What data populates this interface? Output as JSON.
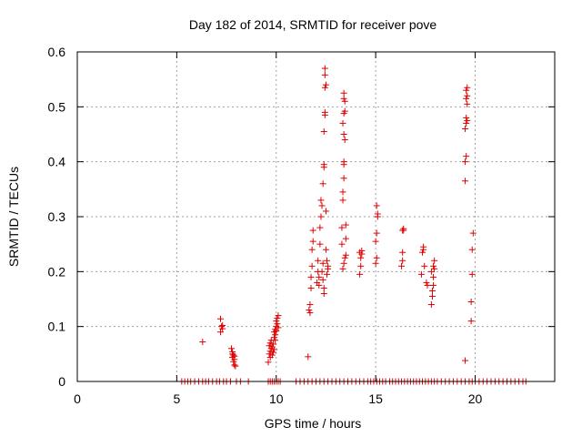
{
  "chart_data": {
    "type": "scatter",
    "title": "Day 182 of 2014, SRMTID for receiver pove",
    "xlabel": "GPS time / hours",
    "ylabel": "SRMTID / TECUs",
    "xlim": [
      0,
      24
    ],
    "ylim": [
      0,
      0.6
    ],
    "xticks": [
      0,
      5,
      10,
      15,
      20
    ],
    "yticks": [
      0,
      0.1,
      0.2,
      0.3,
      0.4,
      0.5,
      0.6
    ],
    "xtick_labels": [
      "0",
      "5",
      "10",
      "15",
      "20"
    ],
    "ytick_labels": [
      "0",
      "0.1",
      "0.2",
      "0.3",
      "0.4",
      "0.5",
      "0.6"
    ],
    "grid": true,
    "marker": "+",
    "color": "#e00000",
    "series": [
      {
        "name": "SRMTID",
        "points": [
          [
            6.3,
            0.072
          ],
          [
            7.2,
            0.114
          ],
          [
            7.25,
            0.1
          ],
          [
            7.3,
            0.096
          ],
          [
            7.2,
            0.09
          ],
          [
            7.3,
            0.102
          ],
          [
            7.75,
            0.06
          ],
          [
            7.8,
            0.054
          ],
          [
            7.85,
            0.048
          ],
          [
            7.8,
            0.044
          ],
          [
            7.9,
            0.04
          ],
          [
            7.85,
            0.036
          ],
          [
            7.9,
            0.03
          ],
          [
            7.95,
            0.028
          ],
          [
            7.8,
            0.05
          ],
          [
            7.9,
            0.046
          ],
          [
            9.6,
            0.035
          ],
          [
            9.65,
            0.05
          ],
          [
            9.7,
            0.055
          ],
          [
            9.75,
            0.06
          ],
          [
            9.65,
            0.065
          ],
          [
            9.7,
            0.07
          ],
          [
            9.75,
            0.075
          ],
          [
            9.8,
            0.048
          ],
          [
            9.85,
            0.053
          ],
          [
            9.9,
            0.058
          ],
          [
            9.7,
            0.044
          ],
          [
            9.8,
            0.063
          ],
          [
            9.85,
            0.068
          ],
          [
            9.9,
            0.09
          ],
          [
            9.95,
            0.095
          ],
          [
            10.0,
            0.1
          ],
          [
            10.05,
            0.105
          ],
          [
            9.95,
            0.085
          ],
          [
            10.0,
            0.11
          ],
          [
            10.05,
            0.115
          ],
          [
            10.1,
            0.12
          ],
          [
            9.9,
            0.08
          ],
          [
            10.1,
            0.098
          ],
          [
            10.0,
            0.092
          ],
          [
            9.95,
            0.075
          ],
          [
            11.6,
            0.045
          ],
          [
            11.65,
            0.13
          ],
          [
            11.7,
            0.125
          ],
          [
            11.7,
            0.14
          ],
          [
            11.75,
            0.17
          ],
          [
            11.75,
            0.19
          ],
          [
            11.8,
            0.21
          ],
          [
            11.8,
            0.24
          ],
          [
            11.85,
            0.255
          ],
          [
            11.85,
            0.275
          ],
          [
            12.05,
            0.18
          ],
          [
            12.1,
            0.2
          ],
          [
            12.1,
            0.22
          ],
          [
            12.15,
            0.19
          ],
          [
            12.15,
            0.175
          ],
          [
            12.2,
            0.25
          ],
          [
            12.2,
            0.28
          ],
          [
            12.25,
            0.3
          ],
          [
            12.25,
            0.33
          ],
          [
            12.3,
            0.32
          ],
          [
            12.3,
            0.2
          ],
          [
            12.35,
            0.215
          ],
          [
            12.35,
            0.185
          ],
          [
            12.4,
            0.17
          ],
          [
            12.4,
            0.16
          ],
          [
            12.35,
            0.36
          ],
          [
            12.4,
            0.39
          ],
          [
            12.4,
            0.395
          ],
          [
            12.4,
            0.455
          ],
          [
            12.45,
            0.485
          ],
          [
            12.45,
            0.49
          ],
          [
            12.45,
            0.535
          ],
          [
            12.5,
            0.54
          ],
          [
            12.45,
            0.558
          ],
          [
            12.45,
            0.57
          ],
          [
            12.5,
            0.31
          ],
          [
            12.5,
            0.24
          ],
          [
            12.55,
            0.22
          ],
          [
            12.55,
            0.195
          ],
          [
            12.6,
            0.21
          ],
          [
            12.6,
            0.205
          ],
          [
            13.3,
            0.25
          ],
          [
            13.3,
            0.28
          ],
          [
            13.35,
            0.33
          ],
          [
            13.35,
            0.345
          ],
          [
            13.4,
            0.37
          ],
          [
            13.4,
            0.395
          ],
          [
            13.4,
            0.4
          ],
          [
            13.45,
            0.44
          ],
          [
            13.4,
            0.45
          ],
          [
            13.35,
            0.47
          ],
          [
            13.4,
            0.488
          ],
          [
            13.45,
            0.492
          ],
          [
            13.45,
            0.51
          ],
          [
            13.4,
            0.515
          ],
          [
            13.4,
            0.525
          ],
          [
            13.35,
            0.205
          ],
          [
            13.4,
            0.215
          ],
          [
            13.45,
            0.225
          ],
          [
            13.5,
            0.23
          ],
          [
            13.5,
            0.26
          ],
          [
            13.5,
            0.285
          ],
          [
            14.2,
            0.195
          ],
          [
            14.25,
            0.21
          ],
          [
            14.25,
            0.225
          ],
          [
            14.2,
            0.235
          ],
          [
            14.3,
            0.238
          ],
          [
            14.3,
            0.232
          ],
          [
            15.0,
            0.215
          ],
          [
            15.05,
            0.225
          ],
          [
            15.0,
            0.255
          ],
          [
            15.05,
            0.27
          ],
          [
            15.1,
            0.3
          ],
          [
            15.1,
            0.305
          ],
          [
            15.05,
            0.32
          ],
          [
            16.3,
            0.21
          ],
          [
            16.35,
            0.22
          ],
          [
            16.35,
            0.235
          ],
          [
            16.35,
            0.275
          ],
          [
            16.4,
            0.275
          ],
          [
            16.4,
            0.278
          ],
          [
            17.3,
            0.195
          ],
          [
            17.35,
            0.235
          ],
          [
            17.4,
            0.24
          ],
          [
            17.4,
            0.245
          ],
          [
            17.45,
            0.21
          ],
          [
            17.55,
            0.18
          ],
          [
            17.6,
            0.175
          ],
          [
            17.8,
            0.14
          ],
          [
            17.85,
            0.155
          ],
          [
            17.85,
            0.165
          ],
          [
            17.9,
            0.175
          ],
          [
            17.9,
            0.19
          ],
          [
            17.95,
            0.205
          ],
          [
            17.9,
            0.21
          ],
          [
            17.95,
            0.22
          ],
          [
            17.8,
            0.2
          ],
          [
            19.5,
            0.038
          ],
          [
            19.5,
            0.365
          ],
          [
            19.5,
            0.4
          ],
          [
            19.55,
            0.41
          ],
          [
            19.5,
            0.46
          ],
          [
            19.55,
            0.47
          ],
          [
            19.6,
            0.475
          ],
          [
            19.55,
            0.48
          ],
          [
            19.6,
            0.505
          ],
          [
            19.55,
            0.515
          ],
          [
            19.6,
            0.52
          ],
          [
            19.55,
            0.53
          ],
          [
            19.6,
            0.535
          ],
          [
            19.8,
            0.11
          ],
          [
            19.8,
            0.145
          ],
          [
            19.85,
            0.195
          ],
          [
            19.85,
            0.24
          ],
          [
            19.9,
            0.27
          ]
        ],
        "zero_points_x": [
          5.25,
          5.4,
          5.55,
          5.7,
          5.9,
          6.1,
          6.3,
          6.45,
          6.6,
          6.8,
          7.0,
          7.15,
          7.35,
          7.5,
          7.7,
          8.0,
          8.2,
          8.6,
          9.6,
          9.7,
          9.8,
          9.9,
          10.0,
          10.1,
          10.2,
          11.0,
          11.2,
          11.4,
          11.6,
          11.8,
          12.0,
          12.2,
          12.4,
          12.6,
          12.8,
          13.0,
          13.2,
          13.4,
          13.6,
          13.8,
          14.0,
          14.2,
          14.4,
          14.6,
          14.75,
          14.9,
          15.05,
          15.2,
          15.35,
          15.5,
          15.7,
          15.85,
          16.0,
          16.15,
          16.3,
          16.45,
          16.6,
          16.75,
          16.9,
          17.05,
          17.2,
          17.35,
          17.5,
          17.65,
          17.8,
          17.95,
          18.1,
          18.3,
          18.5,
          18.7,
          18.9,
          19.1,
          19.3,
          19.5,
          19.7,
          19.85,
          20.0,
          20.2,
          20.4,
          20.6,
          20.8,
          21.0,
          21.2,
          21.4,
          21.6,
          21.8,
          22.0,
          22.2,
          22.4,
          22.55
        ]
      }
    ]
  }
}
